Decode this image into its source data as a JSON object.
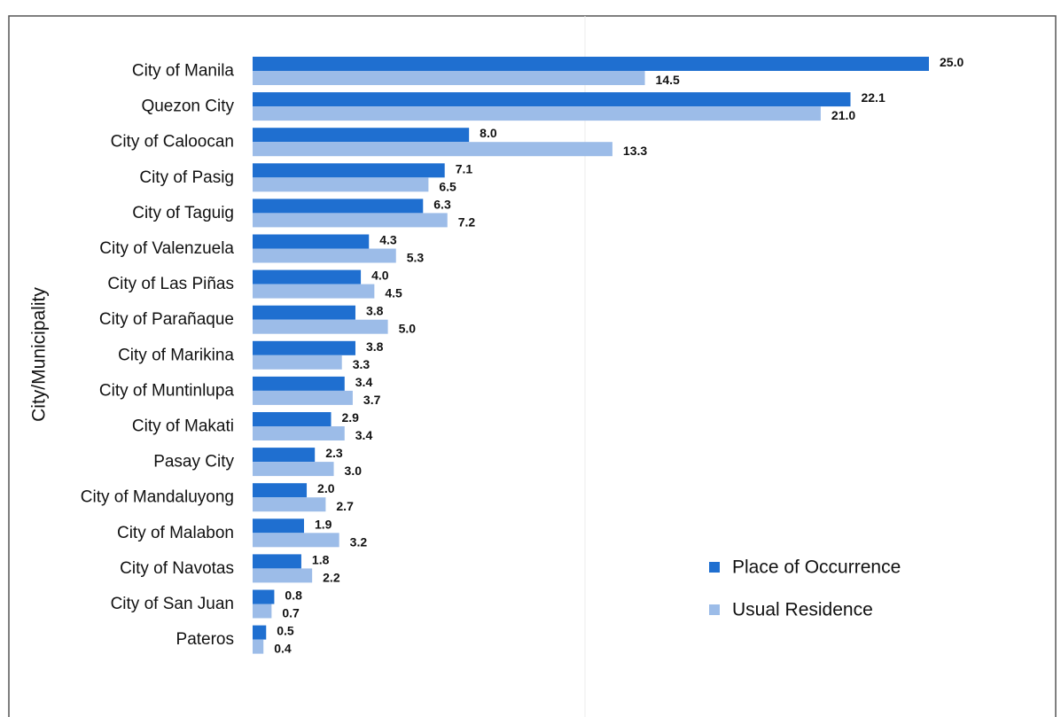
{
  "chart_data": {
    "type": "bar",
    "orientation": "horizontal",
    "ylabel": "City/Municipality",
    "xlabel": "",
    "title": "",
    "xlim": [
      0,
      25
    ],
    "grid": false,
    "legend_position": "bottom-right",
    "categories": [
      "City of Manila",
      "Quezon City",
      "City of Caloocan",
      "City of Pasig",
      "City of Taguig",
      "City of Valenzuela",
      "City of Las Piñas",
      "City of Parañaque",
      "City of Marikina",
      "City of Muntinlupa",
      "City of Makati",
      "Pasay City",
      "City of Mandaluyong",
      "City of Malabon",
      "City of Navotas",
      "City of San Juan",
      "Pateros"
    ],
    "series": [
      {
        "name": "Place of Occurrence",
        "color": "#1f6fd0",
        "values": [
          25.0,
          22.1,
          8.0,
          7.1,
          6.3,
          4.3,
          4.0,
          3.8,
          3.8,
          3.4,
          2.9,
          2.3,
          2.0,
          1.9,
          1.8,
          0.8,
          0.5
        ],
        "labels": [
          "25.0",
          "22.1",
          "8.0",
          "7.1",
          "6.3",
          "4.3",
          "4.0",
          "3.8",
          "3.8",
          "3.4",
          "2.9",
          "2.3",
          "2.0",
          "1.9",
          "1.8",
          "0.8",
          "0.5"
        ]
      },
      {
        "name": "Usual Residence",
        "color": "#9cbce8",
        "values": [
          14.5,
          21.0,
          13.3,
          6.5,
          7.2,
          5.3,
          4.5,
          5.0,
          3.3,
          3.7,
          3.4,
          3.0,
          2.7,
          3.2,
          2.2,
          0.7,
          0.4
        ],
        "labels": [
          "14.5",
          "21.0",
          "13.3",
          "6.5",
          "7.2",
          "5.3",
          "4.5",
          "5.0",
          "3.3",
          "3.7",
          "3.4",
          "3.0",
          "2.7",
          "3.2",
          "2.2",
          "0.7",
          "0.4"
        ]
      }
    ]
  }
}
